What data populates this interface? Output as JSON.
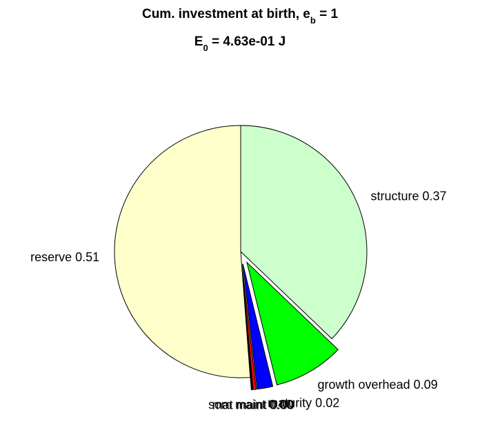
{
  "chart_data": {
    "type": "pie",
    "title_line1": {
      "main": "Cum. investment at birth, e",
      "sub": "b",
      "tail": " = 1"
    },
    "title_line2": {
      "main": "E",
      "sub": "0",
      "tail": " = 4.63e-01 J"
    },
    "slices": [
      {
        "label": "structure 0.37",
        "value": 0.37,
        "color": "#ccffcc",
        "exploded": false
      },
      {
        "label": "growth overhead 0.09",
        "value": 0.09,
        "color": "#00ff00",
        "exploded": true
      },
      {
        "label": "maturity 0.02",
        "value": 0.02,
        "color": "#0000ff",
        "exploded": true
      },
      {
        "label": "som maint 0.00",
        "value": 0.004,
        "color": "#ff0000",
        "exploded": true
      },
      {
        "label": "mat maint 0.00",
        "value": 0.002,
        "color": "#000000",
        "exploded": true
      },
      {
        "label": "reserve 0.51",
        "value": 0.51,
        "color": "#ffffcc",
        "exploded": false
      }
    ]
  }
}
